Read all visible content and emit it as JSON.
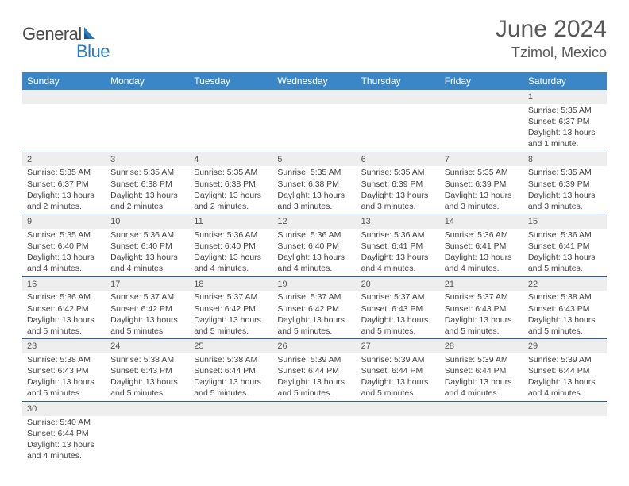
{
  "brand": {
    "general": "General",
    "blue": "Blue"
  },
  "title": {
    "month": "June 2024",
    "location": "Tzimol, Mexico"
  },
  "colors": {
    "headerBg": "#3b86c7",
    "headerText": "#ffffff",
    "dayNumBg": "#eeeeee",
    "rowBorder": "#2d5f96",
    "bodyText": "#444444",
    "titleText": "#585858"
  },
  "dayHeaders": [
    "Sunday",
    "Monday",
    "Tuesday",
    "Wednesday",
    "Thursday",
    "Friday",
    "Saturday"
  ],
  "weeks": [
    [
      {
        "n": "",
        "sr": "",
        "ss": "",
        "dl": ""
      },
      {
        "n": "",
        "sr": "",
        "ss": "",
        "dl": ""
      },
      {
        "n": "",
        "sr": "",
        "ss": "",
        "dl": ""
      },
      {
        "n": "",
        "sr": "",
        "ss": "",
        "dl": ""
      },
      {
        "n": "",
        "sr": "",
        "ss": "",
        "dl": ""
      },
      {
        "n": "",
        "sr": "",
        "ss": "",
        "dl": ""
      },
      {
        "n": "1",
        "sr": "Sunrise: 5:35 AM",
        "ss": "Sunset: 6:37 PM",
        "dl": "Daylight: 13 hours and 1 minute."
      }
    ],
    [
      {
        "n": "2",
        "sr": "Sunrise: 5:35 AM",
        "ss": "Sunset: 6:37 PM",
        "dl": "Daylight: 13 hours and 2 minutes."
      },
      {
        "n": "3",
        "sr": "Sunrise: 5:35 AM",
        "ss": "Sunset: 6:38 PM",
        "dl": "Daylight: 13 hours and 2 minutes."
      },
      {
        "n": "4",
        "sr": "Sunrise: 5:35 AM",
        "ss": "Sunset: 6:38 PM",
        "dl": "Daylight: 13 hours and 2 minutes."
      },
      {
        "n": "5",
        "sr": "Sunrise: 5:35 AM",
        "ss": "Sunset: 6:38 PM",
        "dl": "Daylight: 13 hours and 3 minutes."
      },
      {
        "n": "6",
        "sr": "Sunrise: 5:35 AM",
        "ss": "Sunset: 6:39 PM",
        "dl": "Daylight: 13 hours and 3 minutes."
      },
      {
        "n": "7",
        "sr": "Sunrise: 5:35 AM",
        "ss": "Sunset: 6:39 PM",
        "dl": "Daylight: 13 hours and 3 minutes."
      },
      {
        "n": "8",
        "sr": "Sunrise: 5:35 AM",
        "ss": "Sunset: 6:39 PM",
        "dl": "Daylight: 13 hours and 3 minutes."
      }
    ],
    [
      {
        "n": "9",
        "sr": "Sunrise: 5:35 AM",
        "ss": "Sunset: 6:40 PM",
        "dl": "Daylight: 13 hours and 4 minutes."
      },
      {
        "n": "10",
        "sr": "Sunrise: 5:36 AM",
        "ss": "Sunset: 6:40 PM",
        "dl": "Daylight: 13 hours and 4 minutes."
      },
      {
        "n": "11",
        "sr": "Sunrise: 5:36 AM",
        "ss": "Sunset: 6:40 PM",
        "dl": "Daylight: 13 hours and 4 minutes."
      },
      {
        "n": "12",
        "sr": "Sunrise: 5:36 AM",
        "ss": "Sunset: 6:40 PM",
        "dl": "Daylight: 13 hours and 4 minutes."
      },
      {
        "n": "13",
        "sr": "Sunrise: 5:36 AM",
        "ss": "Sunset: 6:41 PM",
        "dl": "Daylight: 13 hours and 4 minutes."
      },
      {
        "n": "14",
        "sr": "Sunrise: 5:36 AM",
        "ss": "Sunset: 6:41 PM",
        "dl": "Daylight: 13 hours and 4 minutes."
      },
      {
        "n": "15",
        "sr": "Sunrise: 5:36 AM",
        "ss": "Sunset: 6:41 PM",
        "dl": "Daylight: 13 hours and 5 minutes."
      }
    ],
    [
      {
        "n": "16",
        "sr": "Sunrise: 5:36 AM",
        "ss": "Sunset: 6:42 PM",
        "dl": "Daylight: 13 hours and 5 minutes."
      },
      {
        "n": "17",
        "sr": "Sunrise: 5:37 AM",
        "ss": "Sunset: 6:42 PM",
        "dl": "Daylight: 13 hours and 5 minutes."
      },
      {
        "n": "18",
        "sr": "Sunrise: 5:37 AM",
        "ss": "Sunset: 6:42 PM",
        "dl": "Daylight: 13 hours and 5 minutes."
      },
      {
        "n": "19",
        "sr": "Sunrise: 5:37 AM",
        "ss": "Sunset: 6:42 PM",
        "dl": "Daylight: 13 hours and 5 minutes."
      },
      {
        "n": "20",
        "sr": "Sunrise: 5:37 AM",
        "ss": "Sunset: 6:43 PM",
        "dl": "Daylight: 13 hours and 5 minutes."
      },
      {
        "n": "21",
        "sr": "Sunrise: 5:37 AM",
        "ss": "Sunset: 6:43 PM",
        "dl": "Daylight: 13 hours and 5 minutes."
      },
      {
        "n": "22",
        "sr": "Sunrise: 5:38 AM",
        "ss": "Sunset: 6:43 PM",
        "dl": "Daylight: 13 hours and 5 minutes."
      }
    ],
    [
      {
        "n": "23",
        "sr": "Sunrise: 5:38 AM",
        "ss": "Sunset: 6:43 PM",
        "dl": "Daylight: 13 hours and 5 minutes."
      },
      {
        "n": "24",
        "sr": "Sunrise: 5:38 AM",
        "ss": "Sunset: 6:43 PM",
        "dl": "Daylight: 13 hours and 5 minutes."
      },
      {
        "n": "25",
        "sr": "Sunrise: 5:38 AM",
        "ss": "Sunset: 6:44 PM",
        "dl": "Daylight: 13 hours and 5 minutes."
      },
      {
        "n": "26",
        "sr": "Sunrise: 5:39 AM",
        "ss": "Sunset: 6:44 PM",
        "dl": "Daylight: 13 hours and 5 minutes."
      },
      {
        "n": "27",
        "sr": "Sunrise: 5:39 AM",
        "ss": "Sunset: 6:44 PM",
        "dl": "Daylight: 13 hours and 5 minutes."
      },
      {
        "n": "28",
        "sr": "Sunrise: 5:39 AM",
        "ss": "Sunset: 6:44 PM",
        "dl": "Daylight: 13 hours and 4 minutes."
      },
      {
        "n": "29",
        "sr": "Sunrise: 5:39 AM",
        "ss": "Sunset: 6:44 PM",
        "dl": "Daylight: 13 hours and 4 minutes."
      }
    ],
    [
      {
        "n": "30",
        "sr": "Sunrise: 5:40 AM",
        "ss": "Sunset: 6:44 PM",
        "dl": "Daylight: 13 hours and 4 minutes."
      },
      {
        "n": "",
        "sr": "",
        "ss": "",
        "dl": ""
      },
      {
        "n": "",
        "sr": "",
        "ss": "",
        "dl": ""
      },
      {
        "n": "",
        "sr": "",
        "ss": "",
        "dl": ""
      },
      {
        "n": "",
        "sr": "",
        "ss": "",
        "dl": ""
      },
      {
        "n": "",
        "sr": "",
        "ss": "",
        "dl": ""
      },
      {
        "n": "",
        "sr": "",
        "ss": "",
        "dl": ""
      }
    ]
  ]
}
